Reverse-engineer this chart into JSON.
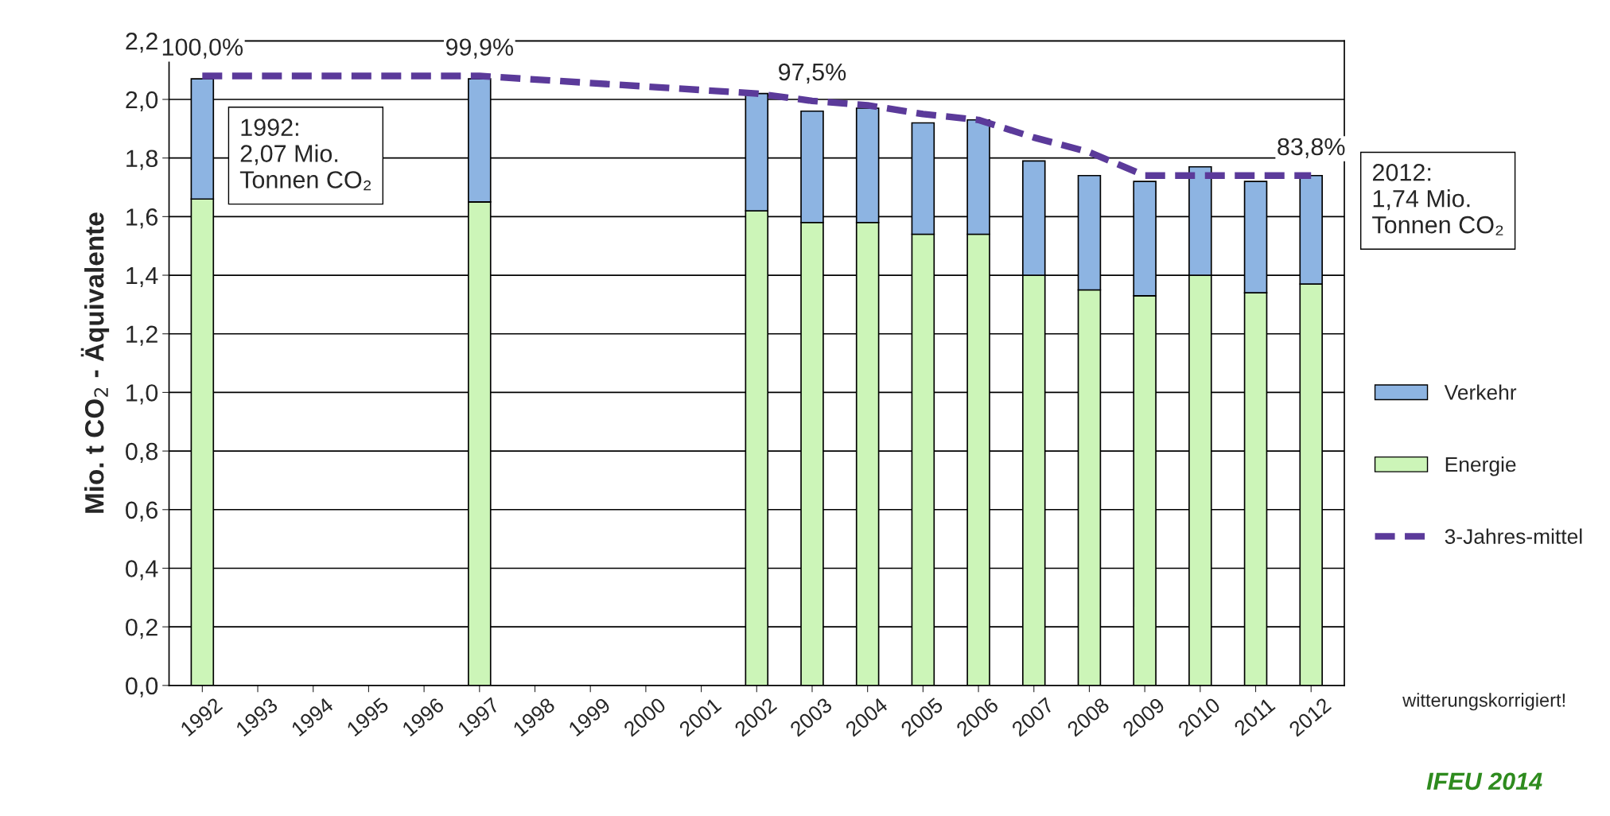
{
  "chart_data": {
    "type": "bar",
    "stacked": true,
    "categories": [
      "1992",
      "1993",
      "1994",
      "1995",
      "1996",
      "1997",
      "1998",
      "1999",
      "2000",
      "2001",
      "2002",
      "2003",
      "2004",
      "2005",
      "2006",
      "2007",
      "2008",
      "2009",
      "2010",
      "2011",
      "2012"
    ],
    "series": [
      {
        "name": "Energie",
        "color": "#ccf5b8",
        "values": [
          1.66,
          null,
          null,
          null,
          null,
          1.65,
          null,
          null,
          null,
          null,
          1.62,
          1.58,
          1.58,
          1.54,
          1.54,
          1.4,
          1.35,
          1.33,
          1.4,
          1.34,
          1.37
        ]
      },
      {
        "name": "Verkehr",
        "color": "#8db4e2",
        "values": [
          0.41,
          null,
          null,
          null,
          null,
          0.42,
          null,
          null,
          null,
          null,
          0.4,
          0.38,
          0.39,
          0.38,
          0.39,
          0.39,
          0.39,
          0.39,
          0.37,
          0.38,
          0.37
        ]
      },
      {
        "name": "3-Jahres-mittel",
        "type": "line",
        "color": "#5b3a9a",
        "line_style": "dashed",
        "values": [
          2.08,
          null,
          null,
          null,
          null,
          2.08,
          null,
          null,
          null,
          null,
          2.02,
          1.995,
          1.98,
          1.95,
          1.93,
          1.87,
          1.82,
          1.74,
          1.74,
          1.74,
          1.74
        ]
      }
    ],
    "ylabel": "Mio. t CO$_{2}$ - Äquivalente",
    "ylim": [
      0,
      2.2
    ],
    "yticks": [
      {
        "value": 0,
        "label": "0,0"
      },
      {
        "value": 0.2,
        "label": "0,2"
      },
      {
        "value": 0.4,
        "label": "0,4"
      },
      {
        "value": 0.6,
        "label": "0,6"
      },
      {
        "value": 0.8,
        "label": "0,8"
      },
      {
        "value": 1.0,
        "label": "1,0"
      },
      {
        "value": 1.2,
        "label": "1,2"
      },
      {
        "value": 1.4,
        "label": "1,4"
      },
      {
        "value": 1.6,
        "label": "1,6"
      },
      {
        "value": 1.8,
        "label": "1,8"
      },
      {
        "value": 2.0,
        "label": "2,0"
      },
      {
        "value": 2.2,
        "label": "2,2"
      }
    ],
    "grid": "y",
    "legend": "right",
    "annotations": [
      {
        "text": "100,0%",
        "x": "1992",
        "y": 2.08
      },
      {
        "text": "99,9%",
        "x": "1997",
        "y": 2.08
      },
      {
        "text": "97,5%",
        "x": "2003",
        "y": 1.995
      },
      {
        "text": "83,8%",
        "x": "2012",
        "y": 1.74
      },
      "1992:\n2,07 Mio.\nTonnen CO₂",
      "2012:\n1,74 Mio.\nTonnen CO₂",
      "witterungskorrigiert!",
      "IFEU 2014"
    ]
  }
}
